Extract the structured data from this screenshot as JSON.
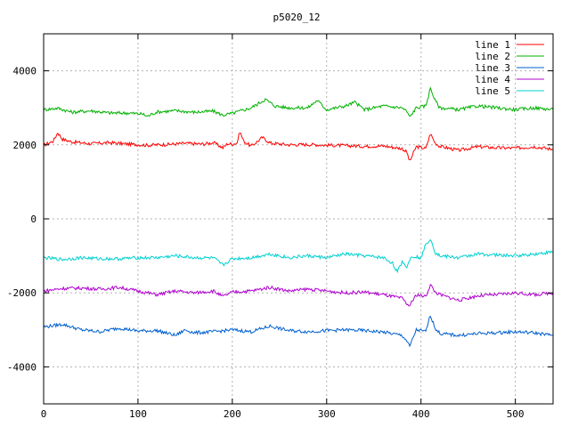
{
  "chart_data": {
    "type": "line",
    "title": "p5020_12",
    "xlabel": "",
    "ylabel": "",
    "xlim": [
      0,
      540
    ],
    "ylim": [
      -5000,
      5000
    ],
    "x_ticks": [
      0,
      100,
      200,
      300,
      400,
      500
    ],
    "y_ticks": [
      -4000,
      -2000,
      0,
      2000,
      4000
    ],
    "grid": true,
    "legend_position": "top-right",
    "series": [
      {
        "name": "line 1",
        "color": "#ff0000",
        "points": [
          [
            0,
            1990
          ],
          [
            10,
            2100
          ],
          [
            15,
            2330
          ],
          [
            20,
            2150
          ],
          [
            30,
            2080
          ],
          [
            50,
            2030
          ],
          [
            70,
            2060
          ],
          [
            90,
            2020
          ],
          [
            110,
            1990
          ],
          [
            130,
            2010
          ],
          [
            150,
            2040
          ],
          [
            170,
            2020
          ],
          [
            180,
            2060
          ],
          [
            190,
            1920
          ],
          [
            195,
            2030
          ],
          [
            200,
            2020
          ],
          [
            205,
            2050
          ],
          [
            208,
            2360
          ],
          [
            212,
            2100
          ],
          [
            220,
            1960
          ],
          [
            232,
            2200
          ],
          [
            240,
            2050
          ],
          [
            260,
            2000
          ],
          [
            280,
            2010
          ],
          [
            300,
            1990
          ],
          [
            320,
            1980
          ],
          [
            340,
            1960
          ],
          [
            360,
            1970
          ],
          [
            380,
            1900
          ],
          [
            385,
            1800
          ],
          [
            388,
            1550
          ],
          [
            395,
            1950
          ],
          [
            405,
            1900
          ],
          [
            410,
            2300
          ],
          [
            415,
            2050
          ],
          [
            420,
            1960
          ],
          [
            440,
            1850
          ],
          [
            460,
            1950
          ],
          [
            480,
            1920
          ],
          [
            500,
            1910
          ],
          [
            520,
            1950
          ],
          [
            540,
            1880
          ]
        ]
      },
      {
        "name": "line 2",
        "color": "#00b000",
        "points": [
          [
            0,
            2950
          ],
          [
            15,
            2990
          ],
          [
            30,
            2880
          ],
          [
            50,
            2920
          ],
          [
            70,
            2860
          ],
          [
            90,
            2860
          ],
          [
            105,
            2830
          ],
          [
            110,
            2770
          ],
          [
            120,
            2890
          ],
          [
            140,
            2920
          ],
          [
            160,
            2880
          ],
          [
            180,
            2910
          ],
          [
            190,
            2800
          ],
          [
            200,
            2850
          ],
          [
            220,
            3000
          ],
          [
            235,
            3230
          ],
          [
            245,
            3050
          ],
          [
            260,
            3000
          ],
          [
            280,
            3000
          ],
          [
            290,
            3200
          ],
          [
            300,
            2950
          ],
          [
            320,
            3050
          ],
          [
            330,
            3150
          ],
          [
            340,
            2950
          ],
          [
            360,
            3050
          ],
          [
            380,
            3000
          ],
          [
            385,
            2900
          ],
          [
            388,
            2750
          ],
          [
            395,
            3000
          ],
          [
            405,
            3050
          ],
          [
            410,
            3530
          ],
          [
            415,
            3200
          ],
          [
            420,
            3000
          ],
          [
            440,
            2950
          ],
          [
            460,
            3050
          ],
          [
            480,
            3000
          ],
          [
            500,
            2950
          ],
          [
            520,
            3000
          ],
          [
            540,
            2950
          ]
        ]
      },
      {
        "name": "line 3",
        "color": "#0060d0",
        "points": [
          [
            0,
            -2920
          ],
          [
            20,
            -2850
          ],
          [
            40,
            -3000
          ],
          [
            60,
            -3050
          ],
          [
            80,
            -2950
          ],
          [
            100,
            -3030
          ],
          [
            120,
            -3020
          ],
          [
            140,
            -3150
          ],
          [
            150,
            -3000
          ],
          [
            160,
            -3080
          ],
          [
            180,
            -3050
          ],
          [
            200,
            -3000
          ],
          [
            220,
            -3050
          ],
          [
            240,
            -2900
          ],
          [
            260,
            -3020
          ],
          [
            280,
            -3050
          ],
          [
            300,
            -3020
          ],
          [
            320,
            -3000
          ],
          [
            340,
            -3020
          ],
          [
            360,
            -3060
          ],
          [
            380,
            -3150
          ],
          [
            385,
            -3300
          ],
          [
            388,
            -3450
          ],
          [
            395,
            -3000
          ],
          [
            405,
            -3050
          ],
          [
            410,
            -2600
          ],
          [
            415,
            -2950
          ],
          [
            420,
            -3100
          ],
          [
            440,
            -3150
          ],
          [
            460,
            -3100
          ],
          [
            480,
            -3080
          ],
          [
            500,
            -3050
          ],
          [
            520,
            -3080
          ],
          [
            540,
            -3150
          ]
        ]
      },
      {
        "name": "line 4",
        "color": "#b000d0",
        "points": [
          [
            0,
            -1950
          ],
          [
            20,
            -1880
          ],
          [
            40,
            -1870
          ],
          [
            60,
            -1900
          ],
          [
            80,
            -1850
          ],
          [
            100,
            -1950
          ],
          [
            120,
            -2050
          ],
          [
            140,
            -1950
          ],
          [
            160,
            -2000
          ],
          [
            180,
            -1950
          ],
          [
            190,
            -2100
          ],
          [
            200,
            -1980
          ],
          [
            220,
            -1950
          ],
          [
            240,
            -1850
          ],
          [
            260,
            -1950
          ],
          [
            280,
            -1900
          ],
          [
            300,
            -1950
          ],
          [
            320,
            -2000
          ],
          [
            340,
            -1980
          ],
          [
            360,
            -2050
          ],
          [
            380,
            -2150
          ],
          [
            385,
            -2300
          ],
          [
            388,
            -2350
          ],
          [
            395,
            -2050
          ],
          [
            405,
            -2100
          ],
          [
            410,
            -1780
          ],
          [
            415,
            -1980
          ],
          [
            420,
            -2050
          ],
          [
            440,
            -2200
          ],
          [
            460,
            -2080
          ],
          [
            480,
            -2050
          ],
          [
            500,
            -2000
          ],
          [
            520,
            -2050
          ],
          [
            540,
            -2000
          ]
        ]
      },
      {
        "name": "line 5",
        "color": "#00d0d0",
        "points": [
          [
            0,
            -1050
          ],
          [
            20,
            -1100
          ],
          [
            40,
            -1050
          ],
          [
            60,
            -1080
          ],
          [
            80,
            -1080
          ],
          [
            100,
            -1050
          ],
          [
            120,
            -1050
          ],
          [
            140,
            -1000
          ],
          [
            160,
            -1050
          ],
          [
            180,
            -1060
          ],
          [
            190,
            -1250
          ],
          [
            200,
            -1080
          ],
          [
            220,
            -1050
          ],
          [
            240,
            -950
          ],
          [
            260,
            -1050
          ],
          [
            280,
            -1000
          ],
          [
            300,
            -1050
          ],
          [
            320,
            -950
          ],
          [
            340,
            -1000
          ],
          [
            360,
            -1050
          ],
          [
            370,
            -1200
          ],
          [
            375,
            -1450
          ],
          [
            380,
            -1150
          ],
          [
            385,
            -1300
          ],
          [
            390,
            -1000
          ],
          [
            400,
            -1050
          ],
          [
            405,
            -700
          ],
          [
            410,
            -530
          ],
          [
            415,
            -900
          ],
          [
            420,
            -1000
          ],
          [
            440,
            -1050
          ],
          [
            460,
            -950
          ],
          [
            480,
            -980
          ],
          [
            500,
            -1000
          ],
          [
            520,
            -950
          ],
          [
            540,
            -900
          ]
        ]
      }
    ]
  }
}
